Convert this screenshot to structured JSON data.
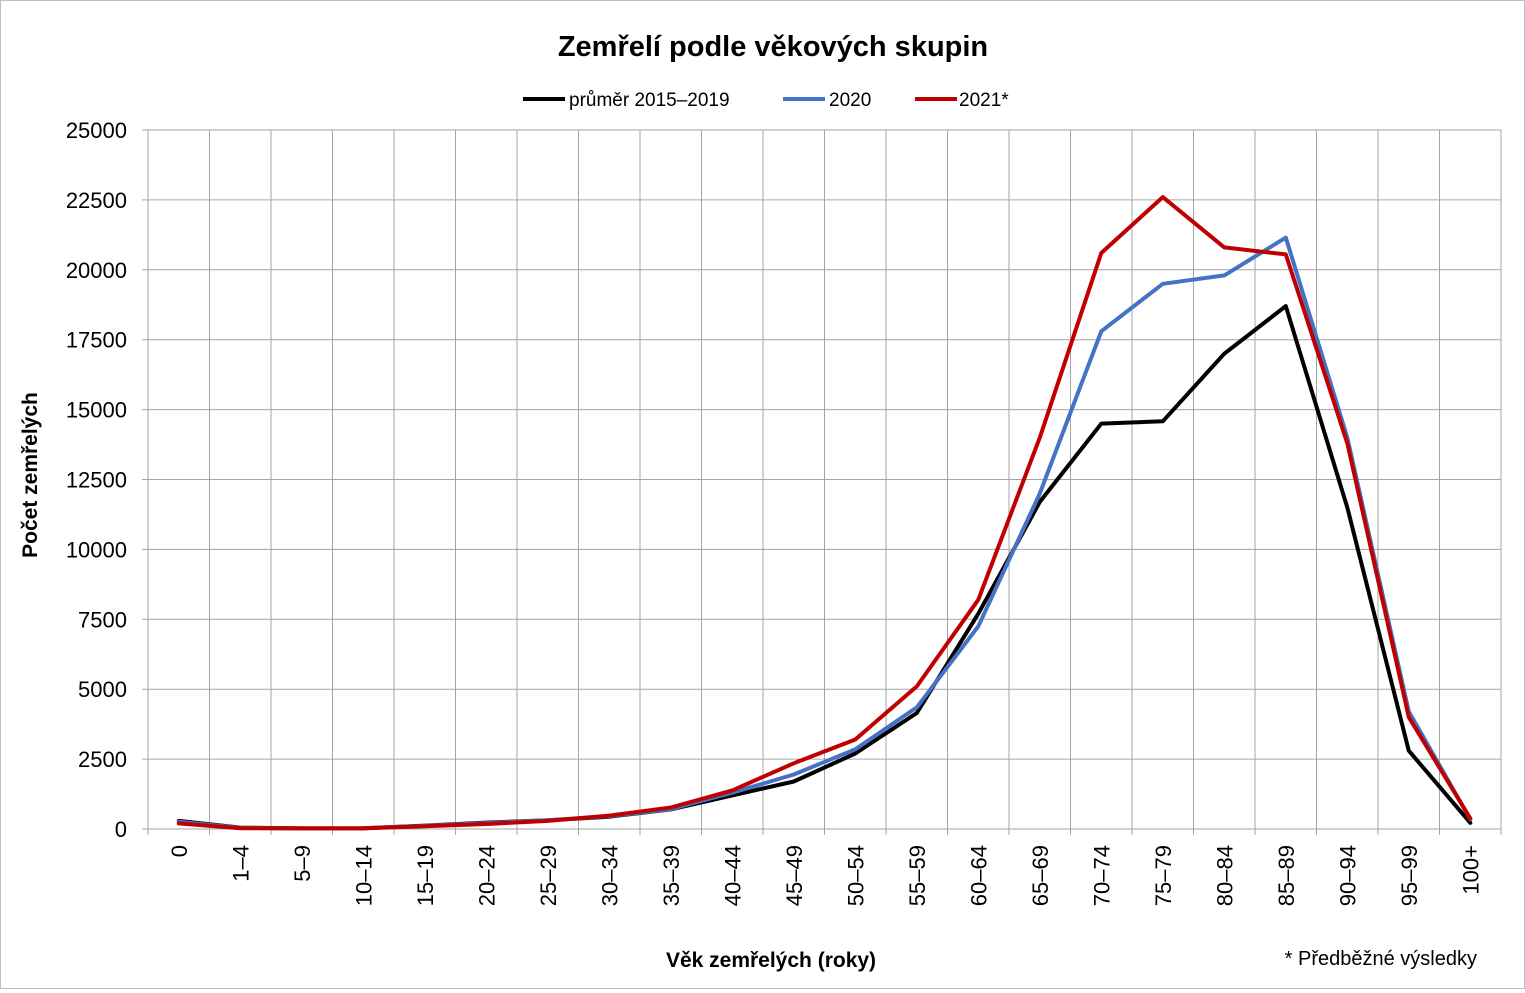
{
  "chart_data": {
    "type": "line",
    "title": "Zemřelí podle věkových skupin",
    "xlabel": "Věk zemřelých (roky)",
    "ylabel": "Počet zemřelých",
    "note": "* Předběžné výsledky",
    "ylim": [
      0,
      25000
    ],
    "yticks": [
      0,
      2500,
      5000,
      7500,
      10000,
      12500,
      15000,
      17500,
      20000,
      22500,
      25000
    ],
    "grid": true,
    "legend_position": "top",
    "categories": [
      "0",
      "1–4",
      "5–9",
      "10–14",
      "15–19",
      "20–24",
      "25–29",
      "30–34",
      "35–39",
      "40–44",
      "45–49",
      "50–54",
      "55–59",
      "60–64",
      "65–69",
      "70–74",
      "75–79",
      "80–84",
      "85–89",
      "90–94",
      "95–99",
      "100+"
    ],
    "series": [
      {
        "name": "průměr 2015–2019",
        "color": "#000000",
        "values": [
          290,
          50,
          20,
          30,
          120,
          230,
          310,
          440,
          700,
          1200,
          1700,
          2700,
          4150,
          7700,
          11700,
          14500,
          14580,
          17000,
          18700,
          11500,
          2800,
          220
        ]
      },
      {
        "name": "2020",
        "color": "#4472c4",
        "values": [
          260,
          40,
          20,
          30,
          110,
          210,
          310,
          460,
          710,
          1300,
          1950,
          2850,
          4350,
          7250,
          12000,
          17800,
          19500,
          19800,
          21150,
          14000,
          4200,
          350
        ]
      },
      {
        "name": "2021*",
        "color": "#c00000",
        "values": [
          200,
          30,
          20,
          20,
          100,
          180,
          290,
          480,
          770,
          1380,
          2350,
          3200,
          5100,
          8200,
          14000,
          20600,
          22600,
          20800,
          20550,
          13800,
          4000,
          380
        ]
      }
    ]
  }
}
